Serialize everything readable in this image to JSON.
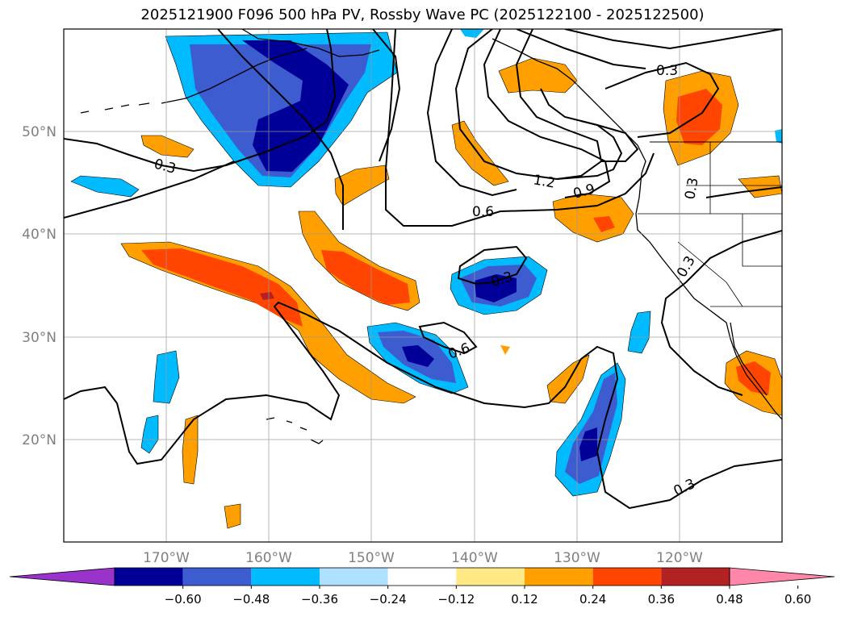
{
  "title": "2025121900 F096 500 hPa PV, Rossby Wave PC (2025122100 - 2025122500)",
  "map": {
    "lon_range": [
      -180,
      -110
    ],
    "lat_range": [
      10,
      60
    ],
    "lat_ticks": [
      {
        "lat": 50,
        "label": "50°N"
      },
      {
        "lat": 40,
        "label": "40°N"
      },
      {
        "lat": 30,
        "label": "30°N"
      },
      {
        "lat": 20,
        "label": "20°N"
      }
    ],
    "lon_ticks": [
      {
        "lon": -170,
        "label": "170°W"
      },
      {
        "lon": -160,
        "label": "160°W"
      },
      {
        "lon": -150,
        "label": "150°W"
      },
      {
        "lon": -140,
        "label": "140°W"
      },
      {
        "lon": -130,
        "label": "130°W"
      },
      {
        "lon": -120,
        "label": "120°W"
      }
    ],
    "grid": true,
    "contour_labels": [
      "0.3",
      "0.3",
      "0.6",
      "0.9",
      "1.2",
      "0.3",
      "0.3",
      "0.3",
      "0.6",
      "0.3"
    ]
  },
  "colorbar": {
    "colors": [
      "#9933cc",
      "#000099",
      "#3d5cd0",
      "#00bbff",
      "#aee0ff",
      "#ffffff",
      "#ffe985",
      "#ff9f00",
      "#ff4500",
      "#b22222",
      "#ff88aa"
    ],
    "tick_labels": [
      "−0.60",
      "−0.48",
      "−0.36",
      "−0.24",
      "−0.12",
      "0.12",
      "0.24",
      "0.36",
      "0.48",
      "0.60"
    ],
    "extend": "both"
  }
}
